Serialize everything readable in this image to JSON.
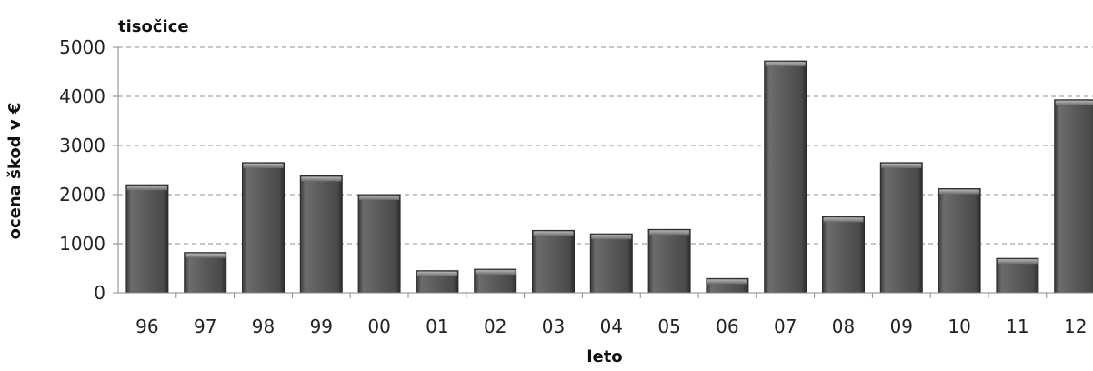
{
  "chart_data": {
    "type": "bar",
    "unit_label": "tisočice",
    "ylabel": "ocena škod v €",
    "xlabel": "leto",
    "ylim": [
      0,
      5000
    ],
    "yticks": [
      0,
      1000,
      2000,
      3000,
      4000,
      5000
    ],
    "grid": true,
    "categories": [
      "96",
      "97",
      "98",
      "99",
      "00",
      "01",
      "02",
      "03",
      "04",
      "05",
      "06",
      "07",
      "08",
      "09",
      "10",
      "11",
      "12"
    ],
    "values": [
      2200,
      820,
      2650,
      2380,
      2000,
      450,
      480,
      1270,
      1200,
      1290,
      290,
      4720,
      1550,
      2650,
      2120,
      700,
      3930
    ],
    "bar_color": "#595959"
  }
}
